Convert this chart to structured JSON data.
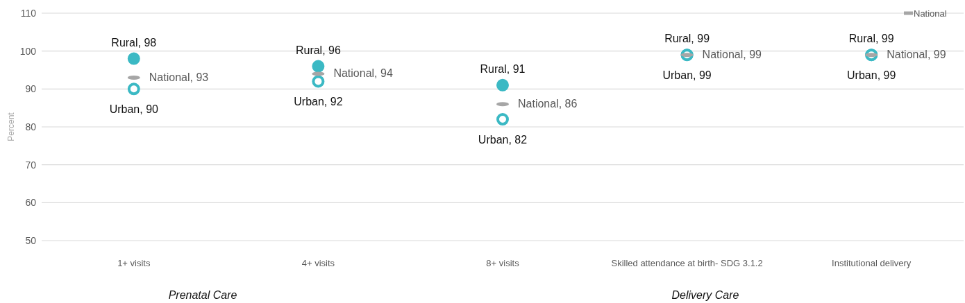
{
  "chart_data": {
    "type": "scatter",
    "ylabel": "Percent",
    "categories": [
      "1+ visits",
      "4+ visits",
      "8+ visits",
      "Skilled attendance at birth- SDG 3.1.2",
      "Institutional delivery"
    ],
    "series": [
      {
        "color": "#3bb9c4",
        "values": [
          98,
          96,
          91,
          99,
          99
        ],
        "value_labels": [
          "Rural, 98",
          "Rural, 96",
          "Rural, 91",
          "Rural, 99",
          "Rural, 99"
        ]
      },
      {
        "color": "#3bb9c4",
        "values": [
          90,
          92,
          82,
          99,
          99
        ],
        "value_labels": [
          "Urban, 90",
          "Urban, 92",
          "Urban, 82",
          "Urban, 99",
          "Urban, 99"
        ]
      },
      {
        "name": "National",
        "color": "#a6a6a6",
        "values": [
          93,
          94,
          86,
          99,
          99
        ],
        "value_labels": [
          "National, 93",
          "National, 94",
          "National, 86",
          "National, 99",
          "National, 99"
        ]
      }
    ],
    "ylim": [
      50,
      110
    ],
    "yticks": [
      50,
      60,
      70,
      80,
      90,
      100,
      110
    ],
    "grid": "y",
    "legend": "top right",
    "annotations": [
      "Prenatal Care",
      "Delivery Care"
    ]
  }
}
